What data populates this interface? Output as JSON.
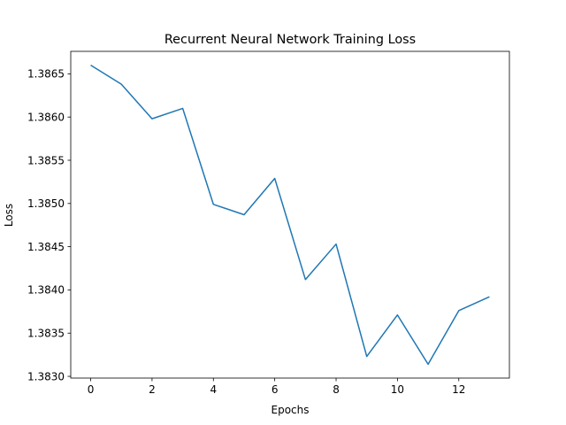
{
  "chart_data": {
    "type": "line",
    "title": "Recurrent Neural Network Training Loss",
    "xlabel": "Epochs",
    "ylabel": "Loss",
    "xlim": [
      -0.65,
      13.65
    ],
    "ylim": [
      1.38298,
      1.38676
    ],
    "xticks": [
      0,
      2,
      4,
      6,
      8,
      10,
      12
    ],
    "yticks": [
      1.383,
      1.3835,
      1.384,
      1.3845,
      1.385,
      1.3855,
      1.386,
      1.3865
    ],
    "ytick_labels": [
      "1.3830",
      "1.3835",
      "1.3840",
      "1.3845",
      "1.3850",
      "1.3855",
      "1.3860",
      "1.3865"
    ],
    "grid": false,
    "series": [
      {
        "color": "#1f77b4",
        "x": [
          0,
          1,
          2,
          3,
          4,
          5,
          6,
          7,
          8,
          9,
          10,
          11,
          12,
          13
        ],
        "values": [
          1.3866,
          1.38638,
          1.38598,
          1.3861,
          1.38499,
          1.38487,
          1.38529,
          1.38412,
          1.38453,
          1.38323,
          1.38371,
          1.38314,
          1.38376,
          1.38392
        ]
      }
    ]
  }
}
